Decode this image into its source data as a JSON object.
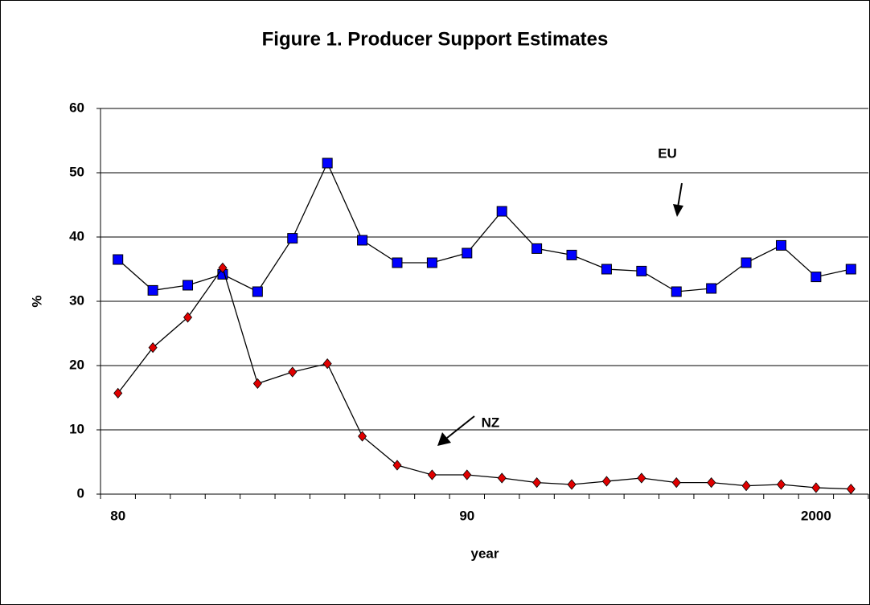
{
  "chart_data": {
    "type": "line",
    "title": "Figure 1.   Producer Support Estimates",
    "x_label": "year",
    "y_label": "%",
    "categories": [
      "80",
      null,
      null,
      null,
      null,
      null,
      null,
      null,
      null,
      null,
      "90",
      null,
      null,
      null,
      null,
      null,
      null,
      null,
      null,
      null,
      "2000",
      null
    ],
    "series": [
      {
        "name": "EU",
        "color": "#0000ff",
        "marker": "square",
        "values": [
          36.5,
          31.7,
          32.5,
          34.2,
          31.5,
          39.8,
          51.5,
          39.5,
          36,
          36,
          37.5,
          44,
          38.2,
          37.2,
          35,
          34.7,
          31.5,
          32,
          36,
          38.7,
          33.8,
          35
        ]
      },
      {
        "name": "NZ",
        "color": "#e00000",
        "marker": "diamond",
        "values": [
          15.7,
          22.8,
          27.5,
          35.2,
          17.2,
          19,
          20.3,
          9,
          4.5,
          3,
          3,
          2.5,
          1.8,
          1.5,
          2,
          2.5,
          1.8,
          1.8,
          1.3,
          1.5,
          1,
          0.8
        ]
      }
    ],
    "ylim": [
      0,
      60
    ],
    "yticks": [
      0,
      10,
      20,
      30,
      40,
      50,
      60
    ],
    "grid": true
  }
}
